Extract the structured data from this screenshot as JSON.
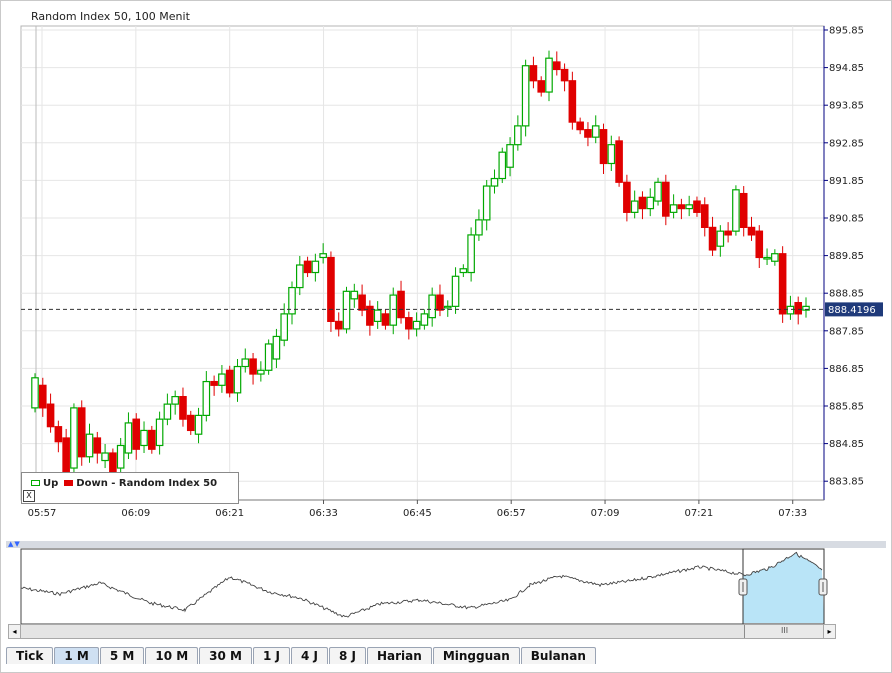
{
  "title": "Random Index 50, 100 Menit",
  "current_price_label": "888.4196",
  "legend": {
    "up_label": "Up",
    "down_label": "Down",
    "series_label": "- Random Index 50",
    "close_label": "X"
  },
  "colors": {
    "up": "#00a800",
    "down": "#e00000",
    "grid": "#e6e6e6",
    "axis": "#000080",
    "navigator_line": "#444444",
    "navigator_fill": "#b9e4f7"
  },
  "chart_data": {
    "type": "candlestick",
    "title": "Random Index 50, 100 Menit",
    "x_axis_label": "",
    "y_axis_label": "",
    "y_axis_side": "right",
    "ylim": [
      883.35,
      895.85
    ],
    "y_ticks": [
      "895.85",
      "894.85",
      "893.85",
      "892.85",
      "891.85",
      "890.85",
      "889.85",
      "888.85",
      "887.85",
      "886.85",
      "885.85",
      "884.85",
      "883.85"
    ],
    "x_ticks": [
      "05:57",
      "06:09",
      "06:21",
      "06:33",
      "06:45",
      "06:57",
      "07:09",
      "07:21",
      "07:33"
    ],
    "x_tick_minutes": [
      0,
      12,
      24,
      36,
      48,
      60,
      72,
      84,
      96
    ],
    "current_price": 888.4196,
    "grid": true,
    "legend_position": "bottom-left",
    "candles_open_close": [
      [
        885.8,
        886.6
      ],
      [
        886.4,
        885.8
      ],
      [
        885.9,
        885.3
      ],
      [
        885.3,
        884.9
      ],
      [
        885.0,
        883.5
      ],
      [
        884.2,
        885.8
      ],
      [
        885.8,
        884.5
      ],
      [
        884.5,
        885.1
      ],
      [
        885.0,
        884.6
      ],
      [
        884.4,
        884.6
      ],
      [
        884.6,
        884.1
      ],
      [
        884.2,
        884.8
      ],
      [
        884.6,
        885.4
      ],
      [
        885.5,
        884.7
      ],
      [
        884.8,
        885.2
      ],
      [
        885.2,
        884.7
      ],
      [
        884.8,
        885.5
      ],
      [
        885.5,
        885.9
      ],
      [
        885.9,
        886.1
      ],
      [
        886.1,
        885.5
      ],
      [
        885.6,
        885.2
      ],
      [
        885.1,
        885.6
      ],
      [
        885.6,
        886.5
      ],
      [
        886.5,
        886.4
      ],
      [
        886.4,
        886.7
      ],
      [
        886.8,
        886.2
      ],
      [
        886.2,
        886.9
      ],
      [
        886.9,
        887.1
      ],
      [
        887.1,
        886.7
      ],
      [
        886.7,
        886.8
      ],
      [
        886.8,
        887.5
      ],
      [
        887.1,
        887.7
      ],
      [
        887.6,
        888.3
      ],
      [
        888.3,
        889.0
      ],
      [
        889.0,
        889.6
      ],
      [
        889.7,
        889.4
      ],
      [
        889.4,
        889.7
      ],
      [
        889.8,
        889.9
      ],
      [
        889.8,
        888.1
      ],
      [
        888.1,
        887.9
      ],
      [
        887.9,
        888.9
      ],
      [
        888.7,
        888.9
      ],
      [
        888.8,
        888.4
      ],
      [
        888.5,
        888.0
      ],
      [
        888.1,
        888.4
      ],
      [
        888.3,
        888.0
      ],
      [
        888.0,
        888.8
      ],
      [
        888.9,
        888.2
      ],
      [
        888.2,
        887.9
      ],
      [
        887.9,
        888.1
      ],
      [
        888.0,
        888.3
      ],
      [
        888.2,
        888.8
      ],
      [
        888.8,
        888.4
      ],
      [
        888.5,
        888.5
      ],
      [
        888.5,
        889.3
      ],
      [
        889.4,
        889.5
      ],
      [
        889.4,
        890.4
      ],
      [
        890.4,
        890.8
      ],
      [
        890.8,
        891.7
      ],
      [
        891.7,
        891.9
      ],
      [
        891.9,
        892.6
      ],
      [
        892.2,
        892.8
      ],
      [
        892.8,
        893.3
      ],
      [
        893.3,
        894.9
      ],
      [
        894.9,
        894.5
      ],
      [
        894.5,
        894.2
      ],
      [
        894.2,
        895.1
      ],
      [
        895.0,
        894.8
      ],
      [
        894.8,
        894.5
      ],
      [
        894.5,
        893.4
      ],
      [
        893.4,
        893.2
      ],
      [
        893.2,
        893.0
      ],
      [
        893.0,
        893.3
      ],
      [
        893.2,
        892.3
      ],
      [
        892.3,
        892.8
      ],
      [
        892.9,
        891.8
      ],
      [
        891.8,
        891.0
      ],
      [
        891.0,
        891.3
      ],
      [
        891.4,
        891.1
      ],
      [
        891.1,
        891.4
      ],
      [
        891.3,
        891.8
      ],
      [
        891.8,
        890.9
      ],
      [
        891.0,
        891.2
      ],
      [
        891.2,
        891.1
      ],
      [
        891.1,
        891.2
      ],
      [
        891.3,
        891.0
      ],
      [
        891.2,
        890.6
      ],
      [
        890.6,
        890.0
      ],
      [
        890.1,
        890.5
      ],
      [
        890.5,
        890.4
      ],
      [
        890.5,
        891.6
      ],
      [
        891.5,
        890.6
      ],
      [
        890.6,
        890.4
      ],
      [
        890.5,
        889.8
      ],
      [
        889.8,
        889.8
      ],
      [
        889.7,
        889.9
      ],
      [
        889.9,
        888.3
      ],
      [
        888.3,
        888.5
      ],
      [
        888.6,
        888.3
      ],
      [
        888.4,
        888.5
      ]
    ]
  },
  "navigator": {
    "handle_left_label": "",
    "handle_right_label": "",
    "scroll_grip": "III",
    "scroll_left": "◂",
    "scroll_right": "▸"
  },
  "tabs": [
    {
      "label": "Tick",
      "active": false
    },
    {
      "label": "1 M",
      "active": true
    },
    {
      "label": "5 M",
      "active": false
    },
    {
      "label": "10 M",
      "active": false
    },
    {
      "label": "30 M",
      "active": false
    },
    {
      "label": "1 J",
      "active": false
    },
    {
      "label": "4 J",
      "active": false
    },
    {
      "label": "8 J",
      "active": false
    },
    {
      "label": "Harian",
      "active": false
    },
    {
      "label": "Mingguan",
      "active": false
    },
    {
      "label": "Bulanan",
      "active": false
    }
  ]
}
